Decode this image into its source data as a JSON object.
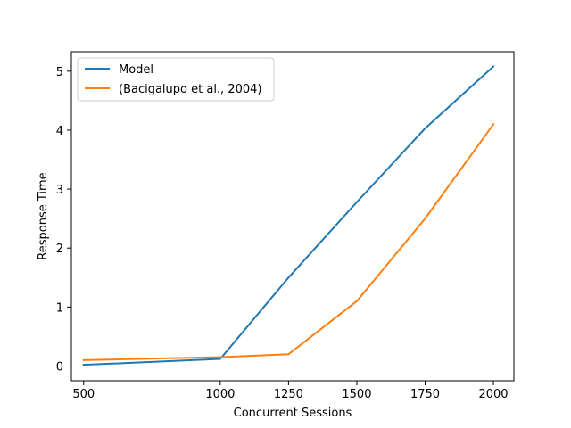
{
  "chart_data": {
    "type": "line",
    "title": "",
    "xlabel": "Concurrent Sessions",
    "ylabel": "Response Time",
    "x": [
      500,
      1000,
      1250,
      1500,
      1750,
      2000
    ],
    "xticks": [
      "500",
      "1000",
      "1250",
      "1500",
      "1750",
      "2000"
    ],
    "yticks": [
      "0",
      "1",
      "2",
      "3",
      "4",
      "5"
    ],
    "xlim": [
      455,
      2075
    ],
    "ylim": [
      -0.25,
      5.33
    ],
    "grid": false,
    "legend_position": "top-left",
    "series": [
      {
        "name": "Model",
        "color": "#1f77b4",
        "values": [
          0.02,
          0.12,
          1.5,
          2.78,
          4.03,
          5.08
        ]
      },
      {
        "name": "(Bacigalupo et al., 2004)",
        "color": "#ff7f0e",
        "values": [
          0.1,
          0.15,
          0.2,
          1.1,
          2.5,
          4.1
        ]
      }
    ]
  }
}
